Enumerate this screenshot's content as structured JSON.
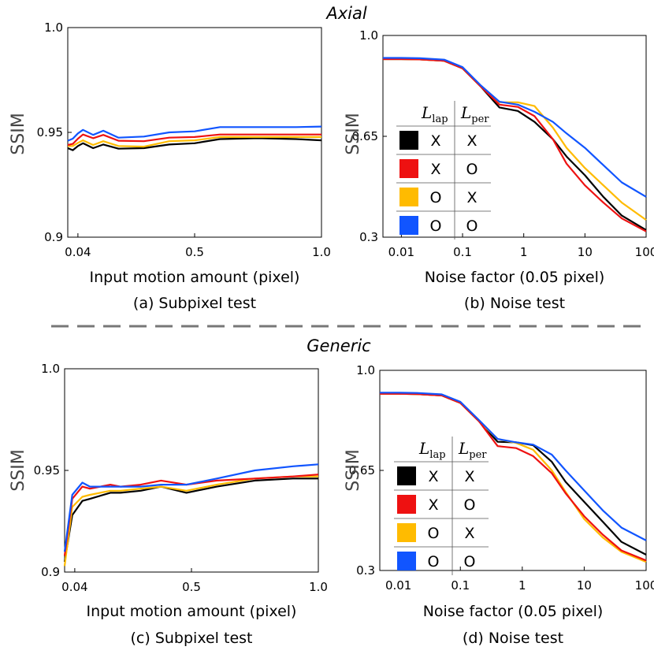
{
  "colors": {
    "black": "#000000",
    "red": "#ee1111",
    "yellow": "#ffbb00",
    "blue": "#1155ff",
    "divider": "#777777"
  },
  "sections": {
    "axial": "Axial",
    "generic": "Generic"
  },
  "legend": {
    "l_symbol": "L",
    "lap_sub": "lap",
    "per_sub": "per",
    "rows": [
      {
        "color": "black",
        "lap": "X",
        "per": "X"
      },
      {
        "color": "red",
        "lap": "X",
        "per": "O"
      },
      {
        "color": "yellow",
        "lap": "O",
        "per": "X"
      },
      {
        "color": "blue",
        "lap": "O",
        "per": "O"
      }
    ]
  },
  "chart_data": [
    {
      "type": "line",
      "panel": "a",
      "caption": "(a) Subpixel test",
      "xlabel": "Input motion amount (pixel)",
      "ylabel": "SSIM",
      "xscale": "linear",
      "xlim": [
        0.0,
        1.0
      ],
      "ylim": [
        0.9,
        1.0
      ],
      "xticks": [
        {
          "v": 0.04,
          "label": "0.04"
        },
        {
          "v": 0.5,
          "label": "0.5"
        },
        {
          "v": 1.0,
          "label": "1.0"
        }
      ],
      "yticks": [
        {
          "v": 0.9,
          "label": "0.9"
        },
        {
          "v": 0.95,
          "label": "0.95"
        },
        {
          "v": 1.0,
          "label": "1.0"
        }
      ],
      "x": [
        0.0,
        0.02,
        0.04,
        0.06,
        0.1,
        0.14,
        0.2,
        0.3,
        0.4,
        0.5,
        0.6,
        0.75,
        0.9,
        1.0
      ],
      "series": [
        {
          "name": "black",
          "color": "black",
          "values": [
            0.9425,
            0.9415,
            0.9435,
            0.9448,
            0.9425,
            0.9442,
            0.9422,
            0.9425,
            0.9442,
            0.9448,
            0.9468,
            0.9472,
            0.9468,
            0.9462
          ]
        },
        {
          "name": "yellow",
          "color": "yellow",
          "values": [
            0.9435,
            0.9435,
            0.945,
            0.9462,
            0.944,
            0.9458,
            0.9435,
            0.9432,
            0.9458,
            0.9462,
            0.9478,
            0.9478,
            0.9478,
            0.9478
          ]
        },
        {
          "name": "red",
          "color": "red",
          "values": [
            0.944,
            0.9445,
            0.947,
            0.949,
            0.9472,
            0.9488,
            0.946,
            0.9458,
            0.9475,
            0.9478,
            0.949,
            0.949,
            0.949,
            0.949
          ]
        },
        {
          "name": "blue",
          "color": "blue",
          "values": [
            0.946,
            0.947,
            0.9495,
            0.9512,
            0.9488,
            0.9508,
            0.9475,
            0.948,
            0.95,
            0.9505,
            0.9525,
            0.9525,
            0.9525,
            0.9528
          ]
        }
      ]
    },
    {
      "type": "line",
      "panel": "b",
      "caption": "(b) Noise test",
      "xlabel": "Noise factor (0.05 pixel)",
      "ylabel": "SSIM",
      "xscale": "log",
      "xlim": [
        0.005,
        100
      ],
      "ylim": [
        0.3,
        1.0
      ],
      "xticks": [
        {
          "v": 0.01,
          "label": "0.01"
        },
        {
          "v": 0.1,
          "label": "0.1"
        },
        {
          "v": 1,
          "label": "1"
        },
        {
          "v": 10,
          "label": "10"
        },
        {
          "v": 100,
          "label": "100"
        }
      ],
      "yticks": [
        {
          "v": 0.3,
          "label": "0.3"
        },
        {
          "v": 0.65,
          "label": "0.65"
        },
        {
          "v": 1.0,
          "label": "1.0"
        }
      ],
      "x": [
        0.005,
        0.01,
        0.02,
        0.05,
        0.1,
        0.2,
        0.4,
        0.8,
        1.5,
        3,
        5,
        10,
        20,
        40,
        100
      ],
      "series": [
        {
          "name": "black",
          "color": "black",
          "values": [
            0.918,
            0.918,
            0.917,
            0.912,
            0.886,
            0.822,
            0.75,
            0.738,
            0.7,
            0.64,
            0.58,
            0.515,
            0.44,
            0.375,
            0.325
          ]
        },
        {
          "name": "red",
          "color": "red",
          "values": [
            0.918,
            0.918,
            0.917,
            0.912,
            0.886,
            0.822,
            0.76,
            0.752,
            0.72,
            0.64,
            0.555,
            0.48,
            0.42,
            0.365,
            0.32
          ]
        },
        {
          "name": "yellow",
          "color": "yellow",
          "values": [
            0.918,
            0.918,
            0.917,
            0.912,
            0.886,
            0.822,
            0.768,
            0.768,
            0.755,
            0.68,
            0.61,
            0.54,
            0.48,
            0.42,
            0.36
          ]
        },
        {
          "name": "blue",
          "color": "blue",
          "values": [
            0.922,
            0.922,
            0.921,
            0.916,
            0.89,
            0.826,
            0.77,
            0.76,
            0.735,
            0.7,
            0.66,
            0.61,
            0.55,
            0.49,
            0.44
          ]
        }
      ]
    },
    {
      "type": "line",
      "panel": "c",
      "caption": "(c) Subpixel test",
      "xlabel": "Input motion amount (pixel)",
      "ylabel": "SSIM",
      "xscale": "linear",
      "xlim": [
        0.0,
        1.0
      ],
      "ylim": [
        0.9,
        1.0
      ],
      "xticks": [
        {
          "v": 0.04,
          "label": "0.04"
        },
        {
          "v": 0.5,
          "label": "0.5"
        },
        {
          "v": 1.0,
          "label": "1.0"
        }
      ],
      "yticks": [
        {
          "v": 0.9,
          "label": "0.9"
        },
        {
          "v": 0.95,
          "label": "0.95"
        },
        {
          "v": 1.0,
          "label": "1.0"
        }
      ],
      "x": [
        0.0,
        0.03,
        0.07,
        0.1,
        0.18,
        0.22,
        0.3,
        0.38,
        0.48,
        0.6,
        0.75,
        0.9,
        1.0
      ],
      "series": [
        {
          "name": "black",
          "color": "black",
          "values": [
            0.905,
            0.928,
            0.935,
            0.936,
            0.939,
            0.939,
            0.94,
            0.942,
            0.939,
            0.942,
            0.945,
            0.946,
            0.946
          ]
        },
        {
          "name": "yellow",
          "color": "yellow",
          "values": [
            0.903,
            0.932,
            0.937,
            0.938,
            0.94,
            0.94,
            0.941,
            0.942,
            0.94,
            0.943,
            0.946,
            0.947,
            0.947
          ]
        },
        {
          "name": "red",
          "color": "red",
          "values": [
            0.908,
            0.936,
            0.942,
            0.941,
            0.943,
            0.942,
            0.943,
            0.945,
            0.943,
            0.945,
            0.946,
            0.947,
            0.948
          ]
        },
        {
          "name": "blue",
          "color": "blue",
          "values": [
            0.91,
            0.938,
            0.944,
            0.942,
            0.942,
            0.942,
            0.942,
            0.943,
            0.943,
            0.946,
            0.95,
            0.952,
            0.953
          ]
        }
      ]
    },
    {
      "type": "line",
      "panel": "d",
      "caption": "(d) Noise test",
      "xlabel": "Noise factor (0.05 pixel)",
      "ylabel": "SSIM",
      "xscale": "log",
      "xlim": [
        0.005,
        100
      ],
      "ylim": [
        0.3,
        1.0
      ],
      "xticks": [
        {
          "v": 0.01,
          "label": "0.01"
        },
        {
          "v": 0.1,
          "label": "0.1"
        },
        {
          "v": 1,
          "label": "1"
        },
        {
          "v": 10,
          "label": "10"
        },
        {
          "v": 100,
          "label": "100"
        }
      ],
      "yticks": [
        {
          "v": 0.3,
          "label": "0.3"
        },
        {
          "v": 0.65,
          "label": "0.65"
        },
        {
          "v": 1.0,
          "label": "1.0"
        }
      ],
      "x": [
        0.005,
        0.01,
        0.02,
        0.05,
        0.1,
        0.2,
        0.4,
        0.8,
        1.5,
        3,
        5,
        10,
        20,
        40,
        100
      ],
      "series": [
        {
          "name": "black",
          "color": "black",
          "values": [
            0.918,
            0.918,
            0.917,
            0.912,
            0.886,
            0.822,
            0.75,
            0.748,
            0.738,
            0.68,
            0.61,
            0.54,
            0.47,
            0.4,
            0.355
          ]
        },
        {
          "name": "red",
          "color": "red",
          "values": [
            0.918,
            0.918,
            0.917,
            0.912,
            0.886,
            0.822,
            0.735,
            0.728,
            0.7,
            0.64,
            0.57,
            0.49,
            0.425,
            0.37,
            0.335
          ]
        },
        {
          "name": "yellow",
          "color": "yellow",
          "values": [
            0.918,
            0.918,
            0.917,
            0.912,
            0.886,
            0.822,
            0.76,
            0.746,
            0.722,
            0.65,
            0.575,
            0.48,
            0.415,
            0.365,
            0.33
          ]
        },
        {
          "name": "blue",
          "color": "blue",
          "values": [
            0.922,
            0.922,
            0.921,
            0.916,
            0.89,
            0.826,
            0.76,
            0.748,
            0.74,
            0.705,
            0.65,
            0.58,
            0.51,
            0.45,
            0.405
          ]
        }
      ]
    }
  ]
}
